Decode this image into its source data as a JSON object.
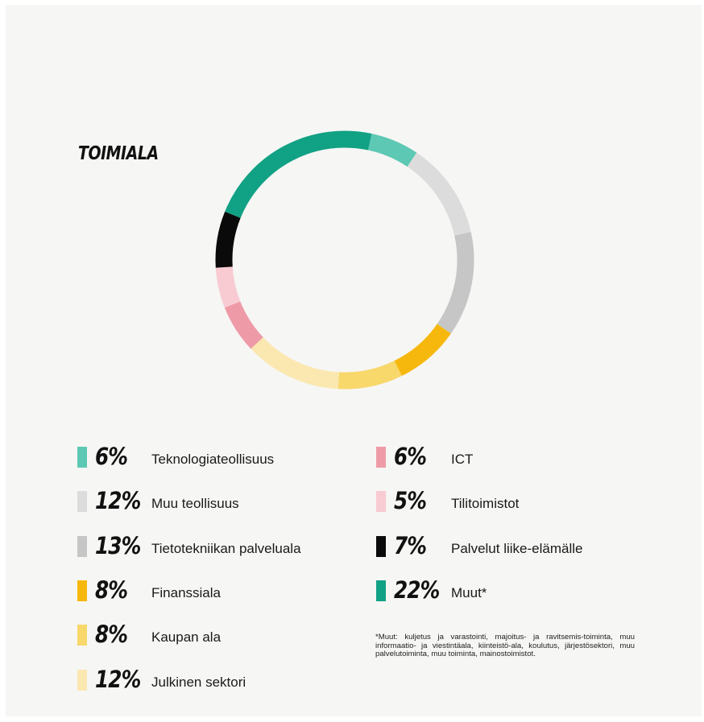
{
  "colors": {
    "teknologia": "#5dc8b4",
    "muu_teollisuus": "#dcdcdc",
    "tietotekniikka": "#c6c6c6",
    "finanssiala": "#f7b80e",
    "kaupan_ala": "#f8d76b",
    "julkinen": "#fbe8b0",
    "ict": "#ee9ba7",
    "tilitoimistot": "#f8cbd2",
    "palvelut": "#0a0a0a",
    "muut": "#11a184"
  },
  "chart_data": {
    "type": "pie",
    "subtype": "donut",
    "title": "TOIMIALA",
    "units": "%",
    "slices": [
      {
        "label": "Teknologiateollisuus",
        "value": 6,
        "display": "6%",
        "color": "#5dc8b4"
      },
      {
        "label": "Muu teollisuus",
        "value": 12,
        "display": "12%",
        "color": "#dcdcdc"
      },
      {
        "label": "Tietotekniikan palveluala",
        "value": 13,
        "display": "13%",
        "color": "#c6c6c6"
      },
      {
        "label": "Finanssiala",
        "value": 8,
        "display": "8%",
        "color": "#f7b80e"
      },
      {
        "label": "Kaupan ala",
        "value": 8,
        "display": "8%",
        "color": "#f8d76b"
      },
      {
        "label": "Julkinen sektori",
        "value": 12,
        "display": "12%",
        "color": "#fbe8b0"
      },
      {
        "label": "ICT",
        "value": 6,
        "display": "6%",
        "color": "#ee9ba7"
      },
      {
        "label": "Tilitoimistot",
        "value": 5,
        "display": "5%",
        "color": "#f8cbd2"
      },
      {
        "label": "Palvelut liike-elämälle",
        "value": 7,
        "display": "7%",
        "color": "#0a0a0a"
      },
      {
        "label": "Muut*",
        "value": 22,
        "display": "22%",
        "color": "#11a184"
      }
    ],
    "legend": {
      "placement": "bottom",
      "columns": 2
    },
    "footnote": "*Muut: kuljetus ja varastointi, majoitus- ja ravitsemis-toiminta, muu informaatio- ja viestintäala, kiinteistö-ala, koulutus, järjestösektori, muu palvelutoiminta, muu toiminta, mainostoimistot."
  }
}
